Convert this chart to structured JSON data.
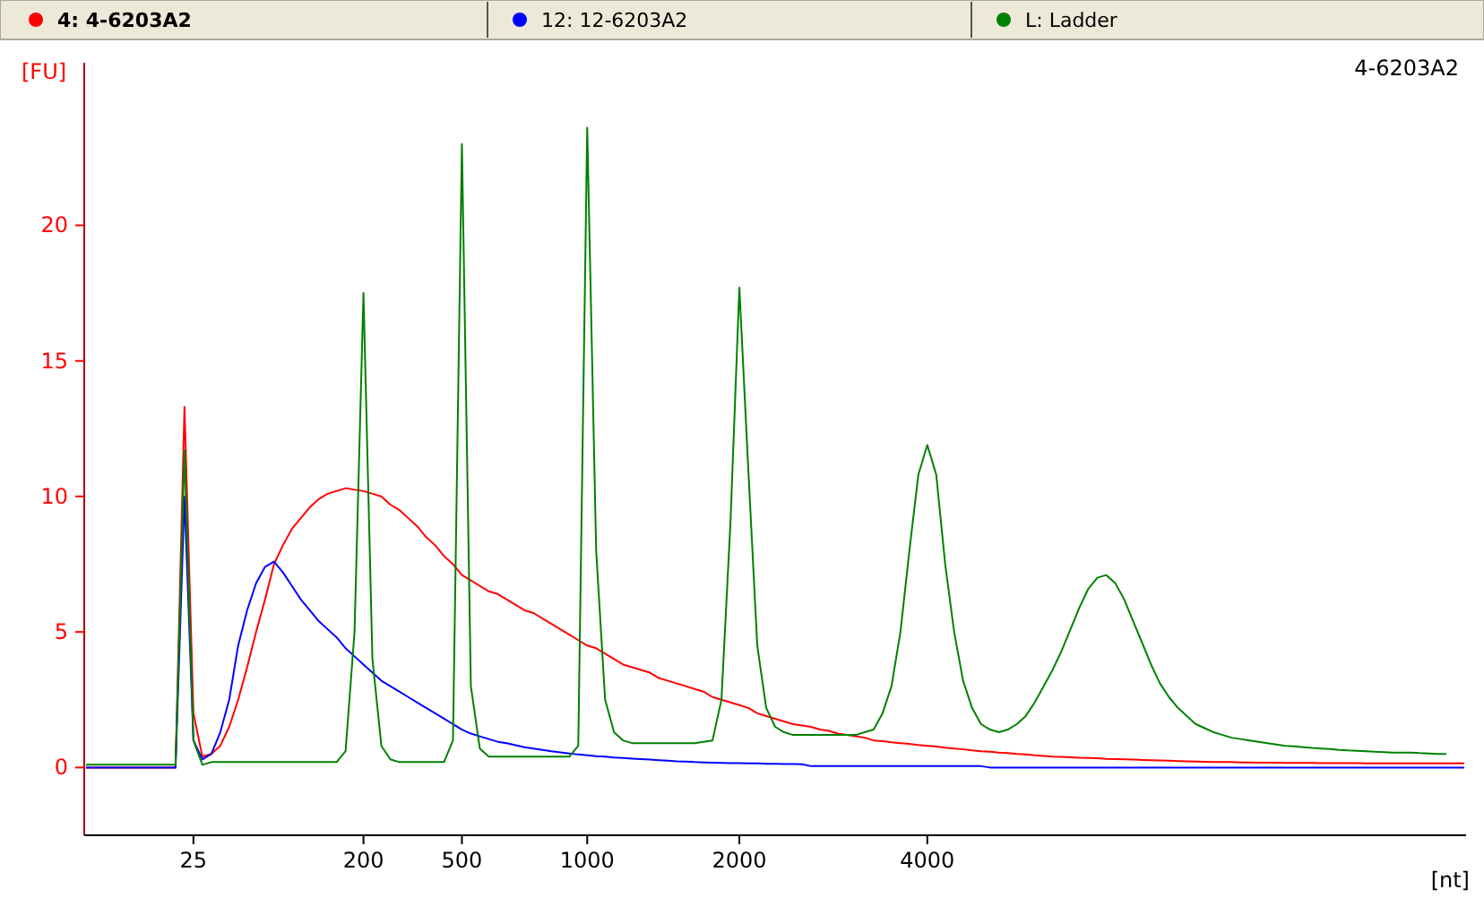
{
  "chart_data": {
    "type": "line",
    "title": "4-6203A2",
    "xlabel": "[nt]",
    "ylabel": "[FU]",
    "categories": [
      null,
      null,
      null,
      null,
      null,
      null,
      null,
      null,
      null,
      null,
      null,
      null,
      "25",
      null,
      null,
      null,
      null,
      null,
      null,
      null,
      null,
      null,
      null,
      null,
      null,
      null,
      null,
      null,
      null,
      null,
      null,
      "200",
      null,
      null,
      null,
      null,
      null,
      null,
      null,
      null,
      null,
      null,
      "500",
      null,
      null,
      null,
      null,
      null,
      null,
      null,
      null,
      null,
      null,
      null,
      null,
      null,
      "1000",
      null,
      null,
      null,
      null,
      null,
      null,
      null,
      null,
      null,
      null,
      null,
      null,
      null,
      null,
      null,
      null,
      "2000",
      null,
      null,
      null,
      null,
      null,
      null,
      null,
      null,
      null,
      null,
      null,
      null,
      null,
      null,
      null,
      null,
      null,
      null,
      null,
      null,
      "4000",
      null,
      null,
      null,
      null,
      null,
      null,
      null,
      null,
      null,
      null,
      null,
      null,
      null,
      null,
      null,
      null,
      null,
      null,
      null,
      null,
      null,
      null,
      null,
      null,
      null,
      null,
      null,
      null,
      null,
      null,
      null,
      null,
      null,
      null,
      null,
      null,
      null,
      null,
      null,
      null,
      null,
      null,
      null,
      null,
      null,
      null,
      null,
      null,
      null,
      null,
      null,
      null,
      null,
      null,
      null,
      null,
      null,
      null,
      null,
      null
    ],
    "ylim": [
      -2.5,
      26
    ],
    "yticks": [
      0,
      5,
      10,
      15,
      20
    ],
    "grid": false,
    "legend": "top",
    "line_style": "solid",
    "marker": "none",
    "series": [
      {
        "name": "4: 4-6203A2",
        "color": "#ff0000",
        "values": [
          0,
          0,
          0,
          0,
          0,
          0,
          0,
          0,
          0,
          0,
          0,
          13.3,
          2,
          0.4,
          0.5,
          0.8,
          1.5,
          2.5,
          3.7,
          5,
          6.2,
          7.5,
          8.2,
          8.8,
          9.2,
          9.6,
          9.9,
          10.1,
          10.2,
          10.3,
          10.25,
          10.2,
          10.1,
          10,
          9.7,
          9.5,
          9.2,
          8.9,
          8.5,
          8.2,
          7.8,
          7.5,
          7.1,
          6.9,
          6.7,
          6.5,
          6.4,
          6.2,
          6.0,
          5.8,
          5.7,
          5.5,
          5.3,
          5.1,
          4.9,
          4.7,
          4.5,
          4.4,
          4.2,
          4.0,
          3.8,
          3.7,
          3.6,
          3.5,
          3.3,
          3.2,
          3.1,
          3.0,
          2.9,
          2.8,
          2.6,
          2.5,
          2.4,
          2.3,
          2.2,
          2.0,
          1.9,
          1.8,
          1.7,
          1.6,
          1.55,
          1.5,
          1.4,
          1.35,
          1.25,
          1.2,
          1.15,
          1.1,
          1.0,
          0.97,
          0.93,
          0.9,
          0.87,
          0.83,
          0.8,
          0.77,
          0.73,
          0.7,
          0.67,
          0.63,
          0.6,
          0.58,
          0.55,
          0.53,
          0.5,
          0.48,
          0.45,
          0.43,
          0.4,
          0.39,
          0.38,
          0.36,
          0.35,
          0.34,
          0.32,
          0.31,
          0.3,
          0.29,
          0.28,
          0.27,
          0.26,
          0.25,
          0.24,
          0.23,
          0.22,
          0.21,
          0.2,
          0.2,
          0.2,
          0.19,
          0.19,
          0.18,
          0.18,
          0.18,
          0.17,
          0.17,
          0.17,
          0.17,
          0.16,
          0.16,
          0.16,
          0.16,
          0.16,
          0.15,
          0.15,
          0.15,
          0.15,
          0.15,
          0.15,
          0.15,
          0.15,
          0.15,
          0.15,
          0.15,
          0.15
        ]
      },
      {
        "name": "12: 12-6203A2",
        "color": "#0000ff",
        "values": [
          0,
          0,
          0,
          0,
          0,
          0,
          0,
          0,
          0,
          0,
          0,
          10,
          1,
          0.3,
          0.5,
          1.3,
          2.5,
          4.5,
          5.8,
          6.8,
          7.4,
          7.6,
          7.2,
          6.7,
          6.2,
          5.8,
          5.4,
          5.1,
          4.8,
          4.4,
          4.1,
          3.8,
          3.5,
          3.2,
          3.0,
          2.8,
          2.6,
          2.4,
          2.2,
          2.0,
          1.8,
          1.6,
          1.4,
          1.25,
          1.15,
          1.05,
          0.95,
          0.9,
          0.82,
          0.75,
          0.7,
          0.65,
          0.6,
          0.56,
          0.52,
          0.48,
          0.45,
          0.42,
          0.4,
          0.37,
          0.35,
          0.33,
          0.31,
          0.29,
          0.27,
          0.25,
          0.23,
          0.22,
          0.2,
          0.19,
          0.18,
          0.17,
          0.16,
          0.16,
          0.15,
          0.15,
          0.14,
          0.14,
          0.13,
          0.13,
          0.12,
          0.05,
          0.05,
          0.05,
          0.05,
          0.05,
          0.05,
          0.05,
          0.05,
          0.05,
          0.05,
          0.05,
          0.05,
          0.05,
          0.05,
          0.05,
          0.05,
          0.05,
          0.05,
          0.05,
          0.05,
          0,
          0,
          0,
          0,
          0,
          0,
          0,
          0,
          0,
          0,
          0,
          0,
          0,
          0,
          0,
          0,
          0,
          0,
          0,
          0,
          0,
          0,
          0,
          0,
          0,
          0,
          0,
          0,
          0,
          0,
          0,
          0,
          0,
          0,
          0,
          0,
          0,
          0,
          0,
          0,
          0,
          0,
          0,
          0,
          0,
          0,
          0,
          0,
          0,
          0,
          0,
          0,
          0,
          0
        ]
      },
      {
        "name": "L: Ladder",
        "color": "#008000",
        "values": [
          0.1,
          0.1,
          0.1,
          0.1,
          0.1,
          0.1,
          0.1,
          0.1,
          0.1,
          0.1,
          0.1,
          11.7,
          1,
          0.1,
          0.2,
          0.2,
          0.2,
          0.2,
          0.2,
          0.2,
          0.2,
          0.2,
          0.2,
          0.2,
          0.2,
          0.2,
          0.2,
          0.2,
          0.2,
          0.6,
          5,
          17.5,
          4,
          0.8,
          0.3,
          0.2,
          0.2,
          0.2,
          0.2,
          0.2,
          0.2,
          1,
          23,
          3,
          0.7,
          0.4,
          0.4,
          0.4,
          0.4,
          0.4,
          0.4,
          0.4,
          0.4,
          0.4,
          0.4,
          0.8,
          23.6,
          8,
          2.5,
          1.3,
          1.0,
          0.9,
          0.9,
          0.9,
          0.9,
          0.9,
          0.9,
          0.9,
          0.9,
          0.95,
          1.0,
          2.5,
          9,
          17.7,
          11,
          4.5,
          2.2,
          1.5,
          1.3,
          1.2,
          1.2,
          1.2,
          1.2,
          1.2,
          1.2,
          1.2,
          1.2,
          1.3,
          1.4,
          2,
          3,
          5,
          8,
          10.8,
          11.9,
          10.8,
          7.5,
          5,
          3.2,
          2.2,
          1.6,
          1.4,
          1.3,
          1.4,
          1.6,
          1.9,
          2.4,
          3,
          3.6,
          4.3,
          5.1,
          5.9,
          6.6,
          7,
          7.1,
          6.8,
          6.2,
          5.4,
          4.6,
          3.8,
          3.1,
          2.6,
          2.2,
          1.9,
          1.6,
          1.45,
          1.3,
          1.2,
          1.1,
          1.05,
          1.0,
          0.95,
          0.9,
          0.85,
          0.8,
          0.78,
          0.75,
          0.72,
          0.7,
          0.68,
          0.65,
          0.63,
          0.62,
          0.6,
          0.58,
          0.57,
          0.55,
          0.55,
          0.55,
          0.53,
          0.52,
          0.5,
          0.5,
          null,
          null
        ]
      }
    ]
  }
}
